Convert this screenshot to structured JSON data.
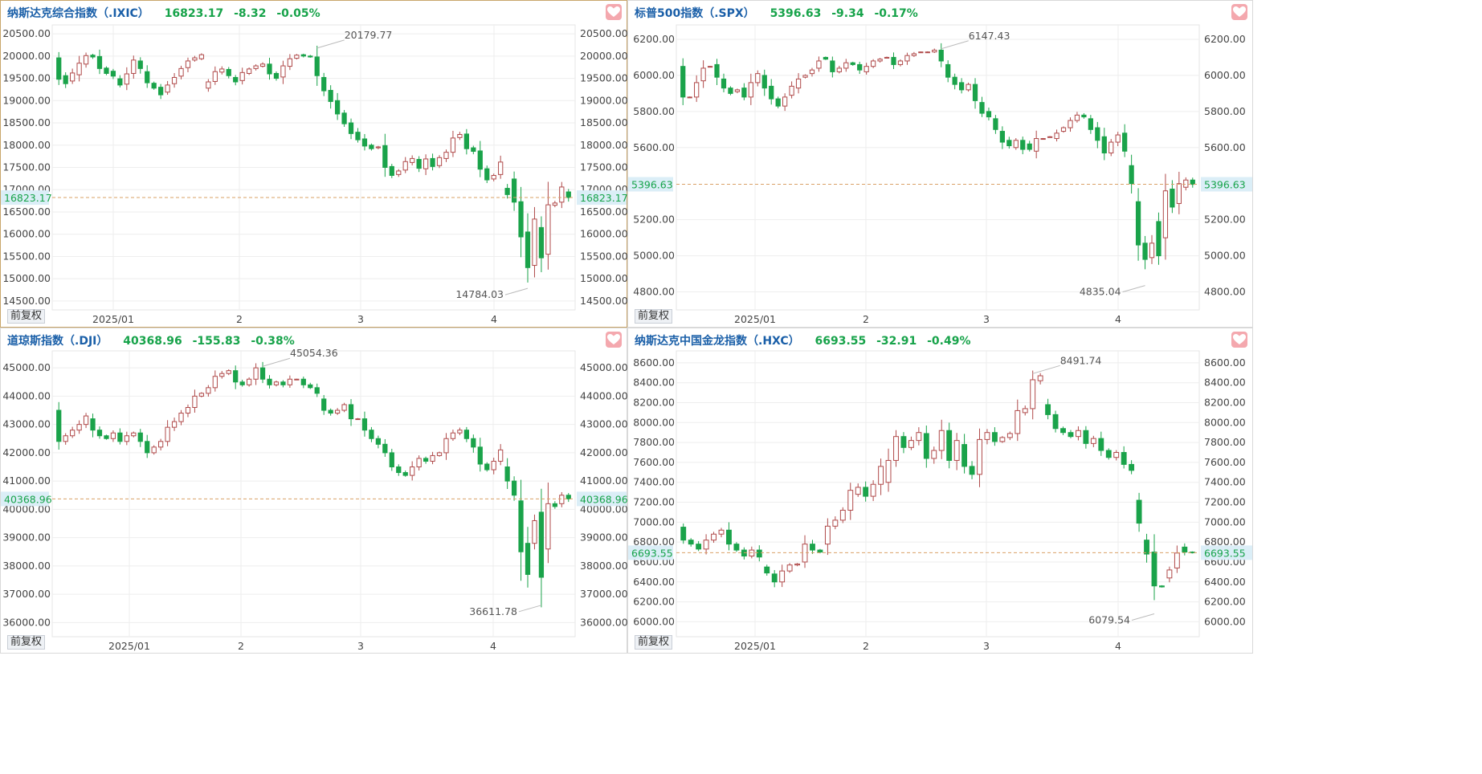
{
  "colors": {
    "up": "#b04a4a",
    "down": "#1aa34a",
    "grid": "#eeeeee",
    "ref": "#d9a066",
    "price_bg": "#dbeef7"
  },
  "panels": [
    {
      "name": "纳斯达克综合指数（.IXIC）",
      "last": "16823.17",
      "change": "-8.32",
      "pct": "-0.05%",
      "fq": "前复权",
      "selected": true,
      "yticks": [
        "20500.00",
        "20000.00",
        "19500.00",
        "19000.00",
        "18500.00",
        "18000.00",
        "17500.00",
        "17000.00",
        "16500.00",
        "16000.00",
        "15500.00",
        "15000.00",
        "14500.00"
      ],
      "xticks": [
        "2025/01",
        "2",
        "3",
        "4"
      ],
      "high_label": "20179.77",
      "low_label": "14784.03",
      "price_label": "16823.17"
    },
    {
      "name": "标普500指数（.SPX）",
      "last": "5396.63",
      "change": "-9.34",
      "pct": "-0.17%",
      "fq": "前复权",
      "selected": false,
      "yticks": [
        "6200.00",
        "6000.00",
        "5800.00",
        "5600.00",
        "5200.00",
        "5000.00",
        "4800.00"
      ],
      "xticks": [
        "2025/01",
        "2",
        "3",
        "4"
      ],
      "high_label": "6147.43",
      "low_label": "4835.04",
      "price_label": "5396.63"
    },
    {
      "name": "道琼斯指数（.DJI）",
      "last": "40368.96",
      "change": "-155.83",
      "pct": "-0.38%",
      "fq": "前复权",
      "selected": false,
      "yticks": [
        "45000.00",
        "44000.00",
        "43000.00",
        "42000.00",
        "41000.00",
        "40000.00",
        "39000.00",
        "38000.00",
        "37000.00",
        "36000.00"
      ],
      "xticks": [
        "2025/01",
        "2",
        "3",
        "4"
      ],
      "high_label": "45054.36",
      "low_label": "36611.78",
      "price_label": "40368.96"
    },
    {
      "name": "纳斯达克中国金龙指数（.HXC）",
      "last": "6693.55",
      "change": "-32.91",
      "pct": "-0.49%",
      "fq": "前复权",
      "selected": false,
      "yticks": [
        "8600.00",
        "8400.00",
        "8200.00",
        "8000.00",
        "7800.00",
        "7600.00",
        "7400.00",
        "7200.00",
        "7000.00",
        "6800.00",
        "6600.00",
        "6400.00",
        "6200.00",
        "6000.00"
      ],
      "xticks": [
        "2025/01",
        "2",
        "3",
        "4"
      ],
      "high_label": "8491.74",
      "low_label": "6079.54",
      "price_label": "6693.55"
    }
  ],
  "chart_data": [
    {
      "type": "candlestick",
      "title": "纳斯达克综合指数（.IXIC）",
      "ylim": [
        14300,
        20700
      ],
      "ticks": [
        20500,
        20000,
        19500,
        19000,
        18500,
        18000,
        17500,
        17000,
        16500,
        16000,
        15500,
        15000,
        14500
      ],
      "last": 16823.17,
      "high": 20179.77,
      "low": 14784.03,
      "close": [
        19480,
        19380,
        19620,
        19840,
        20010,
        19980,
        19720,
        19610,
        19550,
        19350,
        19600,
        19910,
        19720,
        19400,
        19280,
        19130,
        19350,
        19520,
        19720,
        19890,
        19960,
        20030,
        19420,
        19650,
        19710,
        19560,
        19420,
        19630,
        19710,
        19780,
        19820,
        19600,
        19500,
        19780,
        19940,
        20020,
        20000,
        19980,
        19560,
        19220,
        18980,
        18700,
        18480,
        18260,
        18120,
        17980,
        17920,
        17960,
        17500,
        17320,
        17420,
        17630,
        17700,
        17480,
        17690,
        17520,
        17720,
        17840,
        18160,
        18240,
        17920,
        17860,
        17460,
        17220,
        17320,
        17620,
        16890,
        16720,
        15940,
        15250,
        16340,
        15470,
        16660,
        16700,
        17060,
        16823
      ],
      "open": [
        19960,
        19560,
        19440,
        19580,
        19820,
        20020,
        19990,
        19730,
        19660,
        19490,
        19370,
        19610,
        19890,
        19650,
        19390,
        19300,
        19190,
        19380,
        19550,
        19740,
        19910,
        19940,
        19280,
        19430,
        19640,
        19700,
        19520,
        19450,
        19610,
        19720,
        19770,
        19820,
        19610,
        19530,
        19770,
        19950,
        20030,
        20000,
        19980,
        19520,
        19230,
        19000,
        18720,
        18500,
        18290,
        18140,
        18000,
        17940,
        17990,
        17520,
        17340,
        17440,
        17610,
        17680,
        17470,
        17700,
        17540,
        17700,
        17840,
        18170,
        18250,
        17940,
        17870,
        17470,
        17240,
        17340,
        17030,
        17240,
        16730,
        16050,
        15300,
        16150,
        15550,
        16650,
        16720,
        16950
      ]
    },
    {
      "type": "candlestick",
      "title": "标普500指数（.SPX）",
      "ylim": [
        4700,
        6280
      ],
      "ticks": [
        6200,
        6000,
        5800,
        5600,
        5200,
        5000,
        4800
      ],
      "last": 5396.63,
      "high": 6147.43,
      "low": 4835.04,
      "close": [
        5880,
        5880,
        5960,
        6040,
        6050,
        5990,
        5930,
        5900,
        5920,
        5880,
        5960,
        6010,
        5930,
        5870,
        5830,
        5880,
        5940,
        5980,
        6000,
        6030,
        6080,
        6090,
        6020,
        6040,
        6070,
        6060,
        6030,
        6050,
        6080,
        6090,
        6100,
        6060,
        6080,
        6110,
        6120,
        6130,
        6130,
        6140,
        6080,
        5990,
        5950,
        5920,
        5950,
        5860,
        5790,
        5770,
        5700,
        5630,
        5610,
        5640,
        5590,
        5590,
        5650,
        5650,
        5660,
        5680,
        5710,
        5750,
        5780,
        5770,
        5700,
        5640,
        5570,
        5630,
        5670,
        5580,
        5400,
        5060,
        4980,
        5070,
        5000,
        5360,
        5270,
        5400,
        5420,
        5396
      ],
      "open": [
        6050,
        5880,
        5880,
        5970,
        6050,
        6060,
        5980,
        5930,
        5910,
        5930,
        5880,
        5960,
        6000,
        5940,
        5870,
        5830,
        5890,
        5930,
        5990,
        6010,
        6040,
        6100,
        6080,
        6020,
        6040,
        6070,
        6060,
        6020,
        6050,
        6080,
        6100,
        6100,
        6060,
        6080,
        6110,
        6130,
        6130,
        6130,
        6140,
        6060,
        5990,
        5960,
        5920,
        5950,
        5850,
        5800,
        5760,
        5690,
        5640,
        5600,
        5640,
        5620,
        5580,
        5650,
        5660,
        5650,
        5690,
        5710,
        5750,
        5780,
        5760,
        5710,
        5660,
        5570,
        5630,
        5680,
        5500,
        5300,
        5070,
        4990,
        5190,
        5100,
        5370,
        5290,
        5380,
        5420
      ]
    },
    {
      "type": "candlestick",
      "title": "道琼斯指数（.DJI）",
      "ylim": [
        35500,
        45600
      ],
      "ticks": [
        45000,
        44000,
        43000,
        42000,
        41000,
        40000,
        39000,
        38000,
        37000,
        36000
      ],
      "last": 40368.96,
      "high": 45054.36,
      "low": 36611.78,
      "close": [
        42400,
        42600,
        42800,
        43000,
        43300,
        42800,
        42600,
        42500,
        42700,
        42400,
        42600,
        42700,
        42400,
        42000,
        42200,
        42400,
        42900,
        43100,
        43400,
        43600,
        44000,
        44100,
        44300,
        44700,
        44800,
        44900,
        44500,
        44400,
        44600,
        45000,
        44600,
        44400,
        44500,
        44400,
        44600,
        44600,
        44400,
        44300,
        44100,
        43500,
        43400,
        43500,
        43700,
        43200,
        43200,
        42800,
        42500,
        42300,
        42000,
        41500,
        41300,
        41200,
        41500,
        41800,
        41700,
        41900,
        42000,
        42500,
        42700,
        42800,
        42500,
        42200,
        41600,
        41400,
        41700,
        42100,
        41000,
        40500,
        38500,
        37700,
        39600,
        37600,
        40200,
        40100,
        40500,
        40369
      ],
      "open": [
        43500,
        42400,
        42600,
        42800,
        43000,
        43200,
        42800,
        42600,
        42500,
        42700,
        42400,
        42600,
        42700,
        42400,
        42000,
        42200,
        42400,
        42900,
        43100,
        43400,
        43600,
        44000,
        44100,
        44300,
        44700,
        44800,
        44900,
        44500,
        44400,
        44600,
        45000,
        44600,
        44400,
        44500,
        44400,
        44600,
        44600,
        44400,
        44300,
        43900,
        43500,
        43400,
        43500,
        43700,
        43200,
        43200,
        42800,
        42500,
        42300,
        42000,
        41500,
        41300,
        41200,
        41500,
        41800,
        41700,
        41900,
        42000,
        42500,
        42700,
        42800,
        42500,
        42200,
        41600,
        41400,
        41700,
        41500,
        41000,
        40300,
        38800,
        38800,
        39900,
        38600,
        40200,
        40200,
        40500
      ]
    },
    {
      "type": "candlestick",
      "title": "纳斯达克中国金龙指数（.HXC）",
      "ylim": [
        5850,
        8720
      ],
      "ticks": [
        8600,
        8400,
        8200,
        8000,
        7800,
        7600,
        7400,
        7200,
        7000,
        6800,
        6600,
        6400,
        6200,
        6000
      ],
      "last": 6693.55,
      "high": 8491.74,
      "low": 6079.54,
      "close": [
        6820,
        6780,
        6730,
        6820,
        6880,
        6920,
        6780,
        6720,
        6660,
        6720,
        6650,
        6490,
        6400,
        6510,
        6570,
        6580,
        6780,
        6720,
        6700,
        6960,
        7020,
        7120,
        7320,
        7350,
        7260,
        7380,
        7560,
        7620,
        7860,
        7750,
        7820,
        7900,
        7640,
        7720,
        7920,
        7620,
        7820,
        7560,
        7480,
        7830,
        7900,
        7810,
        7850,
        7890,
        8120,
        8140,
        8430,
        8470,
        8080,
        7940,
        7900,
        7860,
        7920,
        7790,
        7840,
        7720,
        7650,
        7700,
        7580,
        7520,
        6990,
        6680,
        6360,
        6350,
        6520,
        6690,
        6700,
        6694
      ],
      "open": [
        6950,
        6820,
        6780,
        6730,
        6820,
        6880,
        6920,
        6780,
        6720,
        6660,
        6720,
        6550,
        6480,
        6400,
        6510,
        6570,
        6600,
        6780,
        6720,
        6780,
        6960,
        7020,
        7120,
        7280,
        7350,
        7260,
        7380,
        7400,
        7620,
        7860,
        7750,
        7820,
        7890,
        7640,
        7720,
        7920,
        7620,
        7780,
        7560,
        7480,
        7830,
        7900,
        7810,
        7850,
        7890,
        8100,
        8140,
        8420,
        8180,
        8080,
        7940,
        7900,
        7860,
        7920,
        7790,
        7840,
        7720,
        7650,
        7700,
        7580,
        7220,
        6820,
        6700,
        6360,
        6440,
        6540,
        6750,
        6700
      ]
    }
  ]
}
